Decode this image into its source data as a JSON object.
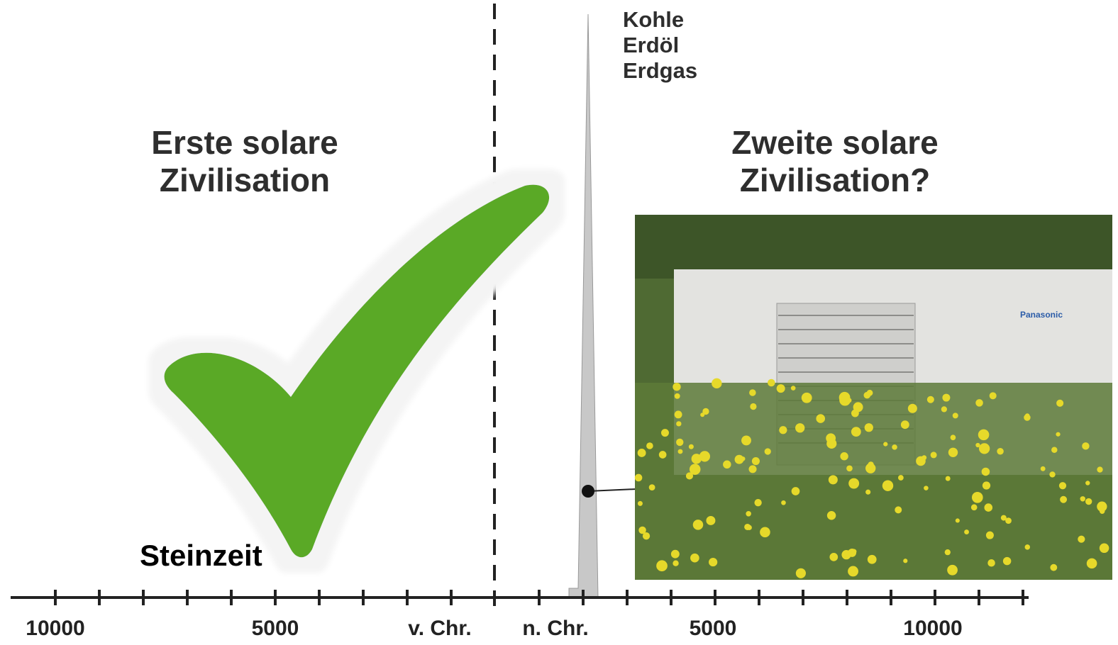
{
  "fossil_labels": [
    "Kohle",
    "Erdöl",
    "Erdgas"
  ],
  "eras": {
    "first": [
      "Erste solare",
      "Zivilisation"
    ],
    "second": [
      "Zweite solare",
      "Zivilisation?"
    ]
  },
  "annotation": "Steinzeit",
  "axis_labels": [
    "10000",
    "5000",
    "v. Chr.",
    "n. Chr.",
    "5000",
    "10000"
  ],
  "photo": {
    "brand": "Panasonic"
  }
}
